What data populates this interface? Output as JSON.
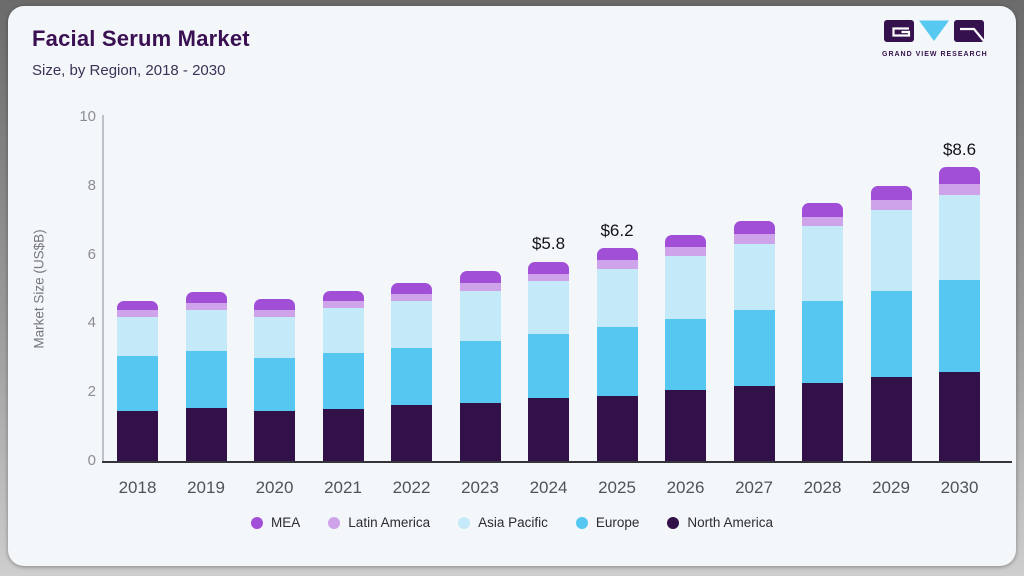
{
  "header": {
    "title": "Facial Serum Market",
    "subtitle": "Size, by Region, 2018 - 2030",
    "logo_text": "GRAND VIEW RESEARCH"
  },
  "colors": {
    "card_background": "#f3f7fa",
    "title_text": "#3b1053",
    "logo_purple": "#35114e",
    "logo_blue": "#57c8f0",
    "axis_line": "#bcc1c7",
    "baseline": "#34343a"
  },
  "chart_data": {
    "type": "bar",
    "stacked": true,
    "title": "Facial Serum Market",
    "subtitle": "Size, by Region, 2018 - 2030",
    "xlabel": "",
    "ylabel": "Market Size (US$B)",
    "ylim": [
      0,
      10
    ],
    "yticks": [
      0,
      2,
      4,
      6,
      8,
      10
    ],
    "grid": false,
    "legend_position": "bottom",
    "categories": [
      "2018",
      "2019",
      "2020",
      "2021",
      "2022",
      "2023",
      "2024",
      "2025",
      "2026",
      "2027",
      "2028",
      "2029",
      "2030"
    ],
    "series": [
      {
        "name": "North America",
        "color": "#321149",
        "values": [
          1.45,
          1.55,
          1.45,
          1.5,
          1.62,
          1.7,
          1.82,
          1.9,
          2.05,
          2.18,
          2.27,
          2.43,
          2.6
        ]
      },
      {
        "name": "Europe",
        "color": "#55c7f0",
        "values": [
          1.6,
          1.65,
          1.55,
          1.65,
          1.68,
          1.8,
          1.87,
          2.0,
          2.07,
          2.22,
          2.38,
          2.5,
          2.65
        ]
      },
      {
        "name": "Asia Pacific",
        "color": "#c4e9f8",
        "values": [
          1.15,
          1.2,
          1.2,
          1.3,
          1.35,
          1.45,
          1.53,
          1.68,
          1.85,
          1.9,
          2.18,
          2.38,
          2.48
        ]
      },
      {
        "name": "Latin America",
        "color": "#cfa3e9",
        "values": [
          0.2,
          0.2,
          0.2,
          0.2,
          0.2,
          0.22,
          0.22,
          0.25,
          0.26,
          0.29,
          0.27,
          0.28,
          0.33
        ]
      },
      {
        "name": "MEA",
        "color": "#a14fd6",
        "values": [
          0.25,
          0.3,
          0.3,
          0.3,
          0.33,
          0.35,
          0.36,
          0.37,
          0.35,
          0.39,
          0.4,
          0.4,
          0.49
        ]
      }
    ],
    "totals_shown": [
      {
        "category": "2024",
        "label": "$5.8"
      },
      {
        "category": "2025",
        "label": "$6.2"
      },
      {
        "category": "2030",
        "label": "$8.6"
      }
    ],
    "legend_order": [
      "MEA",
      "Latin America",
      "Asia Pacific",
      "Europe",
      "North America"
    ]
  }
}
